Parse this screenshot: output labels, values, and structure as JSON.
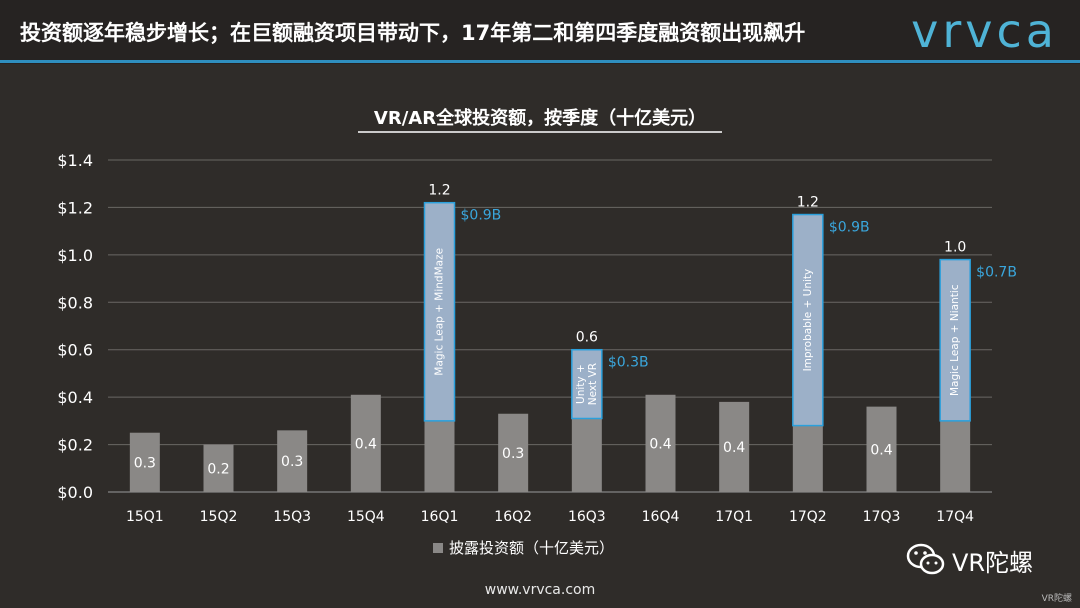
{
  "header": {
    "title": "投资额逐年稳步增长；在巨额融资项目带动下，17年第二和第四季度融资额出现飙升",
    "logo": "vrvca"
  },
  "footer": {
    "url": "www.vrvca.com",
    "wechat_name": "VR陀螺",
    "corner_mark": "VR陀螺"
  },
  "colors": {
    "background": "#2f2c29",
    "bar": "#8a8886",
    "highlight_bar": "#9cb0c8",
    "highlight_border": "#2aa0dc",
    "accent_text": "#3aa6dc",
    "header_rule": "#2f8fbf"
  },
  "chart_data": {
    "type": "bar",
    "title": "VR/AR全球投资额，按季度（十亿美元）",
    "categories": [
      "15Q1",
      "15Q2",
      "15Q3",
      "15Q4",
      "16Q1",
      "16Q2",
      "16Q3",
      "16Q4",
      "17Q1",
      "17Q2",
      "17Q3",
      "17Q4"
    ],
    "series": [
      {
        "name": "披露投资额（十亿美元）",
        "values": [
          0.25,
          0.2,
          0.26,
          0.41,
          1.22,
          0.33,
          0.6,
          0.41,
          0.38,
          1.17,
          0.36,
          0.98
        ],
        "data_labels": [
          "0.3",
          "0.2",
          "0.3",
          "0.4",
          "1.2",
          "0.3",
          "0.6",
          "0.4",
          "0.4",
          "1.2",
          "0.4",
          "1.0"
        ]
      }
    ],
    "highlights": [
      {
        "category": "16Q1",
        "base": 0.3,
        "label": "Magic Leap + MindMaze",
        "amount": "$0.9B"
      },
      {
        "category": "16Q3",
        "base": 0.31,
        "label": "Unity + Next VR",
        "amount": "$0.3B"
      },
      {
        "category": "17Q2",
        "base": 0.28,
        "label": "Improbable + Unity",
        "amount": "$0.9B"
      },
      {
        "category": "17Q4",
        "base": 0.3,
        "label": "Magic Leap + Niantic",
        "amount": "$0.7B"
      }
    ],
    "ylim": [
      0,
      1.4
    ],
    "yticks": [
      "$0.0",
      "$0.2",
      "$0.4",
      "$0.6",
      "$0.8",
      "$1.0",
      "$1.2",
      "$1.4"
    ],
    "grid": true,
    "legend": "bottom-center"
  }
}
